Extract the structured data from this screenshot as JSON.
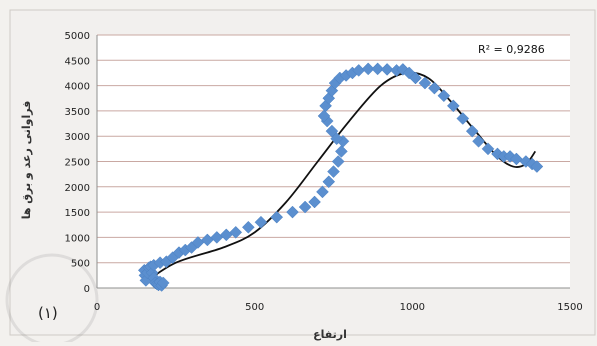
{
  "chart_data": {
    "type": "scatter",
    "xlabel": "ارتفاع",
    "ylabel": "فراوانی رعد و برق ها",
    "xlim": [
      0,
      1500
    ],
    "ylim": [
      0,
      5000
    ],
    "x_ticks": [
      0,
      500,
      1000,
      1500
    ],
    "y_ticks": [
      0,
      500,
      1000,
      1500,
      2000,
      2500,
      3000,
      3500,
      4000,
      4500,
      5000
    ],
    "grid": true,
    "annotation": "R² = 0,9286",
    "panel_label": "(۱)",
    "colors": {
      "points": "#5b8fcf",
      "trend": "#111111",
      "grid": "#c9a8a2",
      "plot_bg": "#ffffff"
    },
    "series": [
      {
        "marker": "diamond",
        "points": [
          [
            150,
            350
          ],
          [
            152,
            250
          ],
          [
            155,
            150
          ],
          [
            160,
            300
          ],
          [
            165,
            400
          ],
          [
            170,
            420
          ],
          [
            175,
            300
          ],
          [
            180,
            200
          ],
          [
            185,
            100
          ],
          [
            190,
            80
          ],
          [
            195,
            60
          ],
          [
            200,
            120
          ],
          [
            205,
            50
          ],
          [
            210,
            100
          ],
          [
            180,
            450
          ],
          [
            200,
            500
          ],
          [
            220,
            520
          ],
          [
            240,
            600
          ],
          [
            260,
            700
          ],
          [
            280,
            750
          ],
          [
            300,
            800
          ],
          [
            320,
            900
          ],
          [
            350,
            950
          ],
          [
            380,
            1000
          ],
          [
            410,
            1050
          ],
          [
            440,
            1100
          ],
          [
            480,
            1200
          ],
          [
            520,
            1300
          ],
          [
            570,
            1400
          ],
          [
            620,
            1500
          ],
          [
            660,
            1600
          ],
          [
            690,
            1700
          ],
          [
            715,
            1900
          ],
          [
            735,
            2100
          ],
          [
            750,
            2300
          ],
          [
            765,
            2500
          ],
          [
            775,
            2700
          ],
          [
            780,
            2900
          ],
          [
            760,
            2950
          ],
          [
            745,
            3100
          ],
          [
            730,
            3300
          ],
          [
            720,
            3400
          ],
          [
            725,
            3600
          ],
          [
            735,
            3750
          ],
          [
            745,
            3900
          ],
          [
            755,
            4050
          ],
          [
            770,
            4150
          ],
          [
            790,
            4200
          ],
          [
            810,
            4250
          ],
          [
            830,
            4300
          ],
          [
            860,
            4330
          ],
          [
            890,
            4330
          ],
          [
            920,
            4320
          ],
          [
            950,
            4300
          ],
          [
            970,
            4320
          ],
          [
            990,
            4250
          ],
          [
            1010,
            4150
          ],
          [
            1040,
            4050
          ],
          [
            1070,
            3950
          ],
          [
            1100,
            3800
          ],
          [
            1130,
            3600
          ],
          [
            1160,
            3350
          ],
          [
            1190,
            3100
          ],
          [
            1210,
            2900
          ],
          [
            1240,
            2750
          ],
          [
            1270,
            2650
          ],
          [
            1290,
            2600
          ],
          [
            1310,
            2600
          ],
          [
            1330,
            2550
          ],
          [
            1360,
            2500
          ],
          [
            1380,
            2450
          ],
          [
            1395,
            2400
          ]
        ]
      },
      {
        "type": "line",
        "smooth": true,
        "points": [
          [
            150,
            100
          ],
          [
            250,
            500
          ],
          [
            400,
            800
          ],
          [
            500,
            1100
          ],
          [
            600,
            1700
          ],
          [
            700,
            2500
          ],
          [
            800,
            3300
          ],
          [
            900,
            4000
          ],
          [
            980,
            4250
          ],
          [
            1050,
            4150
          ],
          [
            1120,
            3700
          ],
          [
            1200,
            3100
          ],
          [
            1270,
            2600
          ],
          [
            1320,
            2400
          ],
          [
            1360,
            2450
          ],
          [
            1390,
            2700
          ]
        ]
      }
    ]
  }
}
